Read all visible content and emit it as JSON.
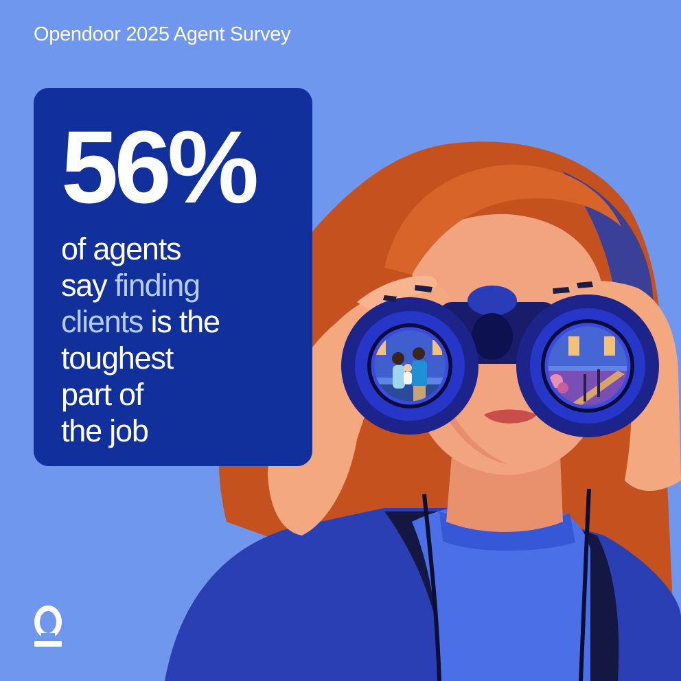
{
  "header": {
    "title": "Opendoor 2025 Agent Survey"
  },
  "stat": {
    "value": "56%",
    "text_lines": [
      [
        {
          "t": "of agents",
          "hl": false
        }
      ],
      [
        {
          "t": "say ",
          "hl": false
        },
        {
          "t": "finding",
          "hl": true
        }
      ],
      [
        {
          "t": "clients",
          "hl": true
        },
        {
          "t": " is the",
          "hl": false
        }
      ],
      [
        {
          "t": "toughest",
          "hl": false
        }
      ],
      [
        {
          "t": "part of",
          "hl": false
        }
      ],
      [
        {
          "t": "the job",
          "hl": false
        }
      ]
    ]
  },
  "colors": {
    "background": "#6f97ee",
    "card": "#11309c",
    "highlight_text": "#b5ccff",
    "hair": "#c5521e",
    "skin": "#f2a37f",
    "lips": "#c94d49",
    "sweater": "#4b6fe6",
    "binoculars": "#181c6b"
  },
  "illustration": {
    "subject": "woman-with-binoculars-illustration",
    "left_lens": "family-at-house-scene",
    "right_lens": "house-porch-steps-scene"
  },
  "logo": {
    "icon": "opendoor-logo-icon"
  }
}
